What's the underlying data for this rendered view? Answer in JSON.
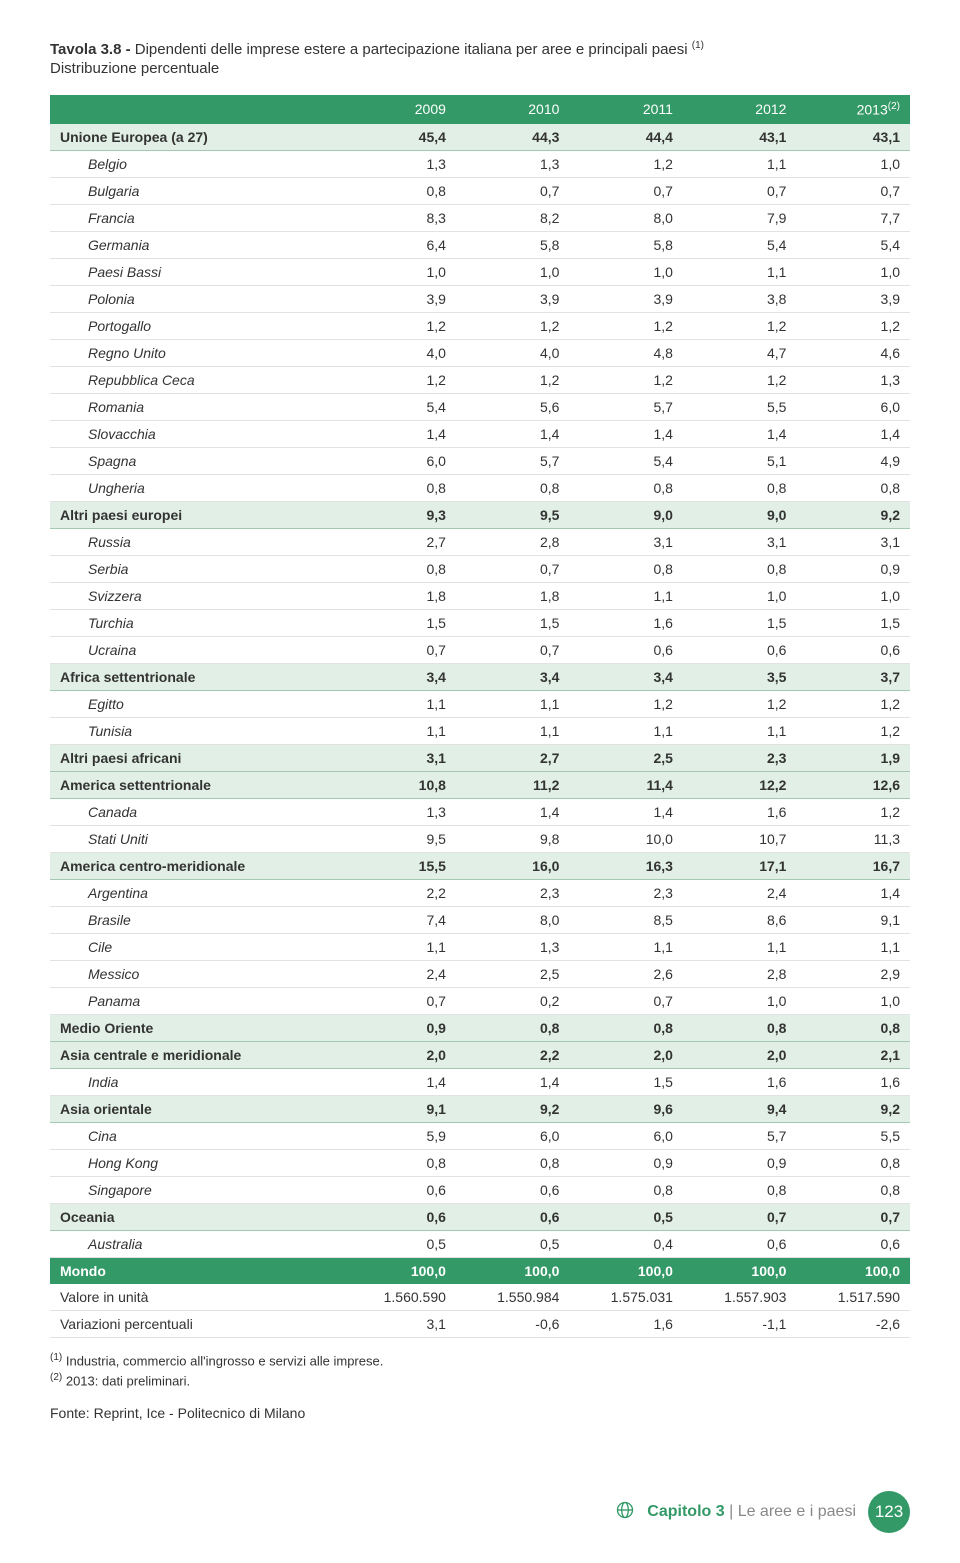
{
  "title_prefix": "Tavola 3.8 -",
  "title_rest": " Dipendenti delle imprese estere a partecipazione italiana per aree e principali paesi ",
  "title_sup": "(1)",
  "subtitle": "Distribuzione percentuale",
  "header_sup": "(2)",
  "columns": [
    "2009",
    "2010",
    "2011",
    "2012",
    "2013"
  ],
  "rows": [
    {
      "l": "Unione Europea (a 27)",
      "t": "band",
      "v": [
        "45,4",
        "44,3",
        "44,4",
        "43,1",
        "43,1"
      ]
    },
    {
      "l": "Belgio",
      "t": "i",
      "v": [
        "1,3",
        "1,3",
        "1,2",
        "1,1",
        "1,0"
      ]
    },
    {
      "l": "Bulgaria",
      "t": "i",
      "v": [
        "0,8",
        "0,7",
        "0,7",
        "0,7",
        "0,7"
      ]
    },
    {
      "l": "Francia",
      "t": "i",
      "v": [
        "8,3",
        "8,2",
        "8,0",
        "7,9",
        "7,7"
      ]
    },
    {
      "l": "Germania",
      "t": "i",
      "v": [
        "6,4",
        "5,8",
        "5,8",
        "5,4",
        "5,4"
      ]
    },
    {
      "l": "Paesi Bassi",
      "t": "i",
      "v": [
        "1,0",
        "1,0",
        "1,0",
        "1,1",
        "1,0"
      ]
    },
    {
      "l": "Polonia",
      "t": "i",
      "v": [
        "3,9",
        "3,9",
        "3,9",
        "3,8",
        "3,9"
      ]
    },
    {
      "l": "Portogallo",
      "t": "i",
      "v": [
        "1,2",
        "1,2",
        "1,2",
        "1,2",
        "1,2"
      ]
    },
    {
      "l": "Regno Unito",
      "t": "i",
      "v": [
        "4,0",
        "4,0",
        "4,8",
        "4,7",
        "4,6"
      ]
    },
    {
      "l": "Repubblica Ceca",
      "t": "i",
      "v": [
        "1,2",
        "1,2",
        "1,2",
        "1,2",
        "1,3"
      ]
    },
    {
      "l": "Romania",
      "t": "i",
      "v": [
        "5,4",
        "5,6",
        "5,7",
        "5,5",
        "6,0"
      ]
    },
    {
      "l": "Slovacchia",
      "t": "i",
      "v": [
        "1,4",
        "1,4",
        "1,4",
        "1,4",
        "1,4"
      ]
    },
    {
      "l": "Spagna",
      "t": "i",
      "v": [
        "6,0",
        "5,7",
        "5,4",
        "5,1",
        "4,9"
      ]
    },
    {
      "l": "Ungheria",
      "t": "i",
      "v": [
        "0,8",
        "0,8",
        "0,8",
        "0,8",
        "0,8"
      ]
    },
    {
      "l": "Altri paesi europei",
      "t": "band",
      "v": [
        "9,3",
        "9,5",
        "9,0",
        "9,0",
        "9,2"
      ]
    },
    {
      "l": "Russia",
      "t": "i",
      "v": [
        "2,7",
        "2,8",
        "3,1",
        "3,1",
        "3,1"
      ]
    },
    {
      "l": "Serbia",
      "t": "i",
      "v": [
        "0,8",
        "0,7",
        "0,8",
        "0,8",
        "0,9"
      ]
    },
    {
      "l": "Svizzera",
      "t": "i",
      "v": [
        "1,8",
        "1,8",
        "1,1",
        "1,0",
        "1,0"
      ]
    },
    {
      "l": "Turchia",
      "t": "i",
      "v": [
        "1,5",
        "1,5",
        "1,6",
        "1,5",
        "1,5"
      ]
    },
    {
      "l": "Ucraina",
      "t": "i",
      "v": [
        "0,7",
        "0,7",
        "0,6",
        "0,6",
        "0,6"
      ]
    },
    {
      "l": "Africa settentrionale",
      "t": "band",
      "v": [
        "3,4",
        "3,4",
        "3,4",
        "3,5",
        "3,7"
      ]
    },
    {
      "l": "Egitto",
      "t": "i",
      "v": [
        "1,1",
        "1,1",
        "1,2",
        "1,2",
        "1,2"
      ]
    },
    {
      "l": "Tunisia",
      "t": "i",
      "v": [
        "1,1",
        "1,1",
        "1,1",
        "1,1",
        "1,2"
      ]
    },
    {
      "l": "Altri paesi africani",
      "t": "band",
      "v": [
        "3,1",
        "2,7",
        "2,5",
        "2,3",
        "1,9"
      ]
    },
    {
      "l": "America settentrionale",
      "t": "band",
      "v": [
        "10,8",
        "11,2",
        "11,4",
        "12,2",
        "12,6"
      ]
    },
    {
      "l": "Canada",
      "t": "i",
      "v": [
        "1,3",
        "1,4",
        "1,4",
        "1,6",
        "1,2"
      ]
    },
    {
      "l": "Stati Uniti",
      "t": "i",
      "v": [
        "9,5",
        "9,8",
        "10,0",
        "10,7",
        "11,3"
      ]
    },
    {
      "l": "America centro-meridionale",
      "t": "band",
      "v": [
        "15,5",
        "16,0",
        "16,3",
        "17,1",
        "16,7"
      ]
    },
    {
      "l": "Argentina",
      "t": "i",
      "v": [
        "2,2",
        "2,3",
        "2,3",
        "2,4",
        "1,4"
      ]
    },
    {
      "l": "Brasile",
      "t": "i",
      "v": [
        "7,4",
        "8,0",
        "8,5",
        "8,6",
        "9,1"
      ]
    },
    {
      "l": "Cile",
      "t": "i",
      "v": [
        "1,1",
        "1,3",
        "1,1",
        "1,1",
        "1,1"
      ]
    },
    {
      "l": "Messico",
      "t": "i",
      "v": [
        "2,4",
        "2,5",
        "2,6",
        "2,8",
        "2,9"
      ]
    },
    {
      "l": "Panama",
      "t": "i",
      "v": [
        "0,7",
        "0,2",
        "0,7",
        "1,0",
        "1,0"
      ]
    },
    {
      "l": "Medio Oriente",
      "t": "band",
      "v": [
        "0,9",
        "0,8",
        "0,8",
        "0,8",
        "0,8"
      ]
    },
    {
      "l": "Asia centrale e meridionale",
      "t": "band",
      "v": [
        "2,0",
        "2,2",
        "2,0",
        "2,0",
        "2,1"
      ]
    },
    {
      "l": "India",
      "t": "i",
      "v": [
        "1,4",
        "1,4",
        "1,5",
        "1,6",
        "1,6"
      ]
    },
    {
      "l": "Asia orientale",
      "t": "band",
      "v": [
        "9,1",
        "9,2",
        "9,6",
        "9,4",
        "9,2"
      ]
    },
    {
      "l": "Cina",
      "t": "i",
      "v": [
        "5,9",
        "6,0",
        "6,0",
        "5,7",
        "5,5"
      ]
    },
    {
      "l": "Hong Kong",
      "t": "i",
      "v": [
        "0,8",
        "0,8",
        "0,9",
        "0,9",
        "0,8"
      ]
    },
    {
      "l": "Singapore",
      "t": "i",
      "v": [
        "0,6",
        "0,6",
        "0,8",
        "0,8",
        "0,8"
      ]
    },
    {
      "l": "Oceania",
      "t": "band",
      "v": [
        "0,6",
        "0,6",
        "0,5",
        "0,7",
        "0,7"
      ]
    },
    {
      "l": "Australia",
      "t": "i",
      "v": [
        "0,5",
        "0,5",
        "0,4",
        "0,6",
        "0,6"
      ]
    },
    {
      "l": "Mondo",
      "t": "world",
      "v": [
        "100,0",
        "100,0",
        "100,0",
        "100,0",
        "100,0"
      ]
    },
    {
      "l": "Valore in unità",
      "t": "plain",
      "v": [
        "1.560.590",
        "1.550.984",
        "1.575.031",
        "1.557.903",
        "1.517.590"
      ]
    },
    {
      "l": "Variazioni percentuali",
      "t": "plain",
      "v": [
        "3,1",
        "-0,6",
        "1,6",
        "-1,1",
        "-2,6"
      ]
    }
  ],
  "footnote1_sup": "(1)",
  "footnote1": " Industria, commercio all'ingrosso e servizi alle imprese.",
  "footnote2_sup": "(2)",
  "footnote2": " 2013: dati preliminari.",
  "source": "Fonte: Reprint, Ice - Politecnico di Milano",
  "chapter_bold": "Capitolo 3",
  "chapter_sep": " | ",
  "chapter_light": "Le aree e i paesi",
  "page_num": "123",
  "colors": {
    "accent": "#339966",
    "band": "#e1efe6"
  }
}
